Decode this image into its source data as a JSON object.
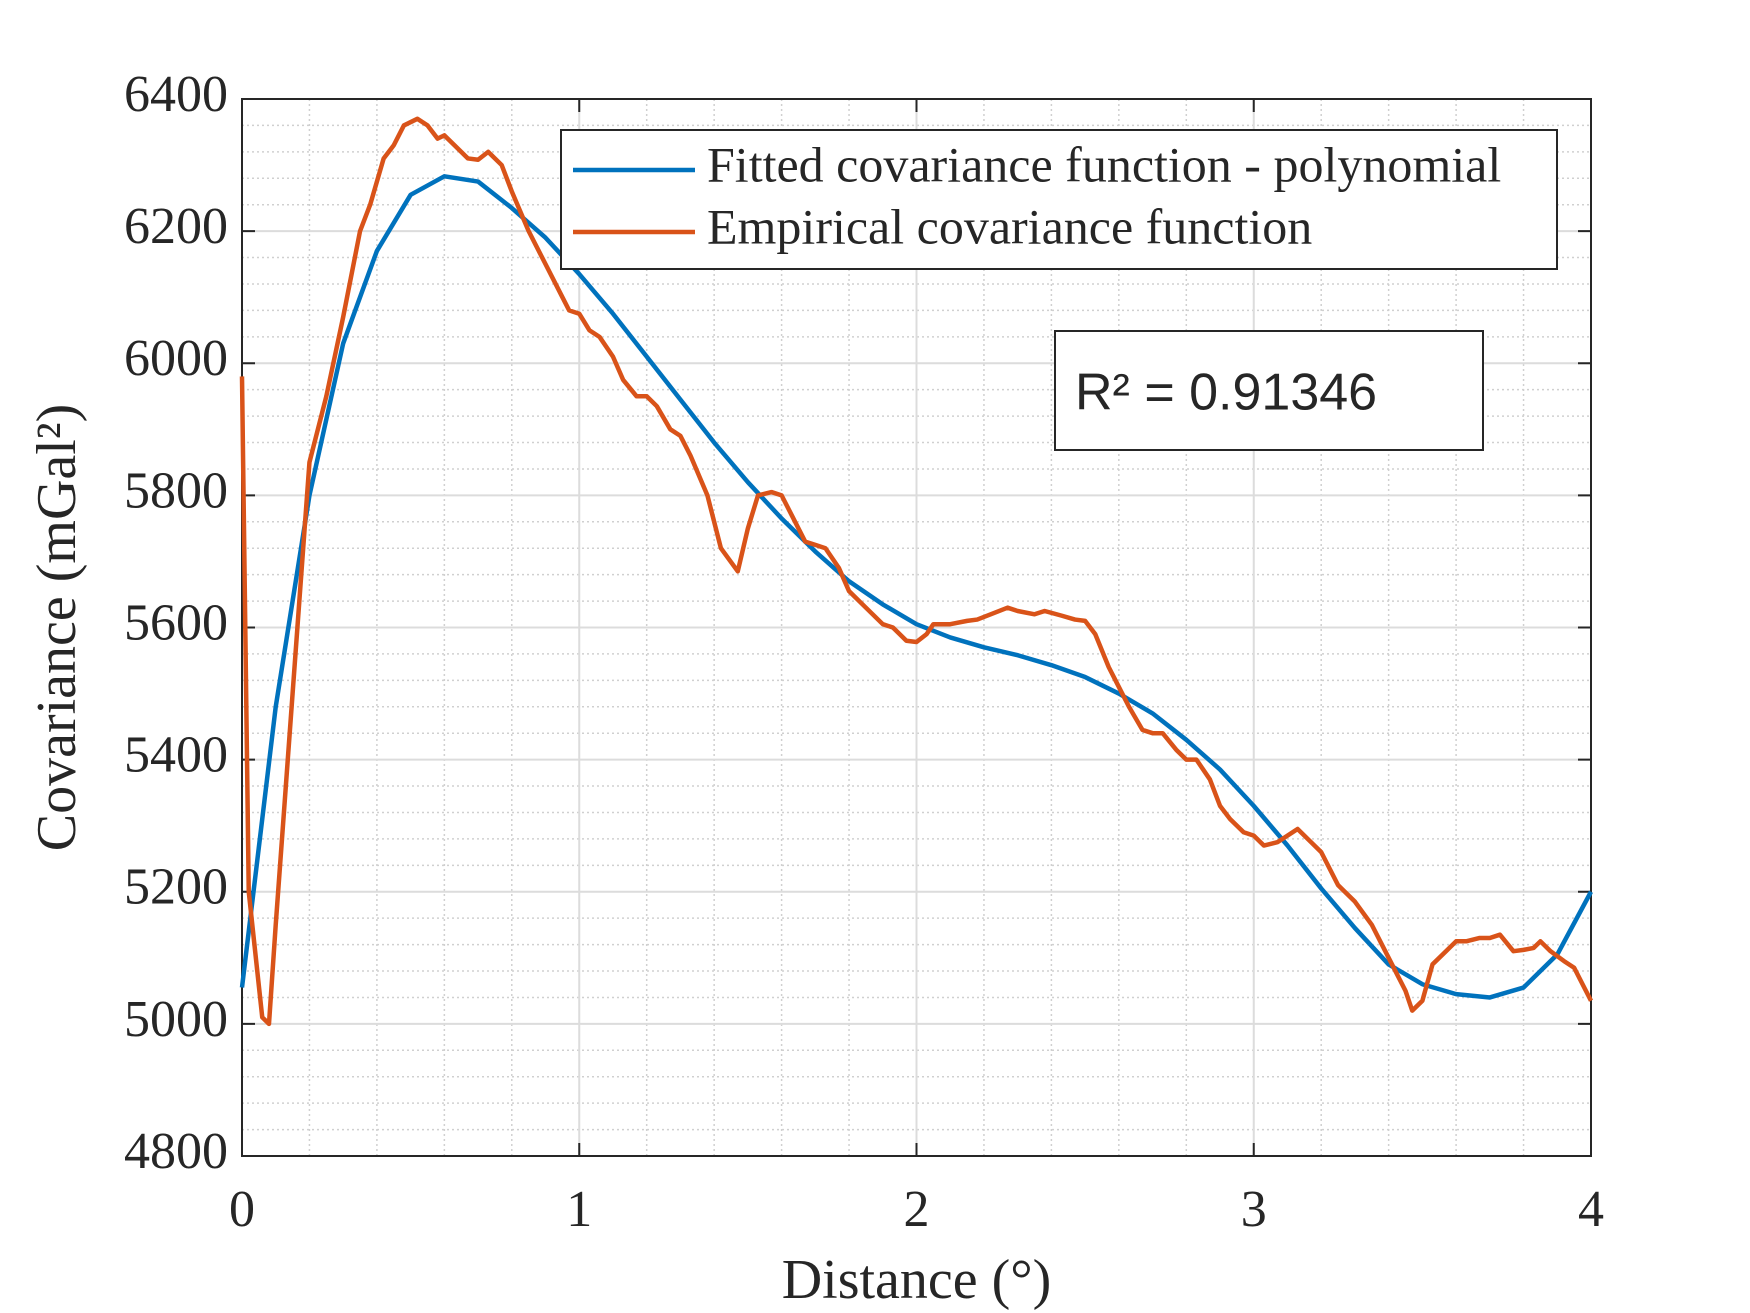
{
  "chart_data": {
    "type": "line",
    "xlabel": "Distance (°)",
    "ylabel": "Covariance (mGal²)",
    "xlim": [
      0,
      4
    ],
    "xticks": [
      0,
      1,
      2,
      3,
      4
    ],
    "ylim": [
      4800,
      6400
    ],
    "yticks": [
      4800,
      5000,
      5200,
      5400,
      5600,
      5800,
      6000,
      6200,
      6400
    ],
    "grid": true,
    "minor_grid": true,
    "legend": "upper right",
    "annotation": "R² = 0.91346",
    "series": [
      {
        "name": "Fitted covariance function - polynomial",
        "color": "#0072BD",
        "x": [
          0,
          0.1,
          0.2,
          0.3,
          0.4,
          0.5,
          0.6,
          0.7,
          0.8,
          0.9,
          1.0,
          1.1,
          1.2,
          1.3,
          1.4,
          1.5,
          1.6,
          1.7,
          1.8,
          1.9,
          2.0,
          2.1,
          2.2,
          2.3,
          2.4,
          2.5,
          2.6,
          2.7,
          2.8,
          2.9,
          3.0,
          3.1,
          3.2,
          3.3,
          3.4,
          3.5,
          3.6,
          3.7,
          3.8,
          3.9,
          4.0
        ],
        "values": [
          5055,
          5480,
          5800,
          6030,
          6170,
          6255,
          6283,
          6275,
          6235,
          6190,
          6135,
          6075,
          6010,
          5945,
          5880,
          5820,
          5765,
          5715,
          5670,
          5635,
          5605,
          5585,
          5570,
          5558,
          5543,
          5525,
          5500,
          5470,
          5430,
          5385,
          5330,
          5270,
          5205,
          5145,
          5090,
          5060,
          5045,
          5040,
          5055,
          5105,
          5200
        ]
      },
      {
        "name": "Empirical covariance function",
        "color": "#D95319",
        "x": [
          0,
          0.02,
          0.06,
          0.08,
          0.1,
          0.15,
          0.2,
          0.25,
          0.3,
          0.35,
          0.38,
          0.42,
          0.45,
          0.48,
          0.52,
          0.55,
          0.58,
          0.6,
          0.63,
          0.67,
          0.7,
          0.73,
          0.77,
          0.8,
          0.85,
          0.9,
          0.95,
          0.97,
          1.0,
          1.03,
          1.06,
          1.1,
          1.13,
          1.17,
          1.2,
          1.23,
          1.27,
          1.3,
          1.33,
          1.38,
          1.42,
          1.47,
          1.5,
          1.53,
          1.57,
          1.6,
          1.63,
          1.67,
          1.7,
          1.73,
          1.77,
          1.8,
          1.85,
          1.9,
          1.93,
          1.97,
          2.0,
          2.03,
          2.05,
          2.1,
          2.15,
          2.18,
          2.22,
          2.27,
          2.3,
          2.35,
          2.38,
          2.43,
          2.47,
          2.5,
          2.53,
          2.57,
          2.6,
          2.63,
          2.67,
          2.7,
          2.73,
          2.77,
          2.8,
          2.83,
          2.87,
          2.9,
          2.93,
          2.97,
          3.0,
          3.03,
          3.07,
          3.1,
          3.13,
          3.17,
          3.2,
          3.25,
          3.3,
          3.35,
          3.4,
          3.45,
          3.47,
          3.5,
          3.53,
          3.57,
          3.6,
          3.63,
          3.67,
          3.7,
          3.73,
          3.77,
          3.8,
          3.83,
          3.85,
          3.88,
          3.92,
          3.95,
          4.0
        ],
        "values": [
          5980,
          5200,
          5010,
          5000,
          5150,
          5500,
          5850,
          5950,
          6070,
          6200,
          6240,
          6310,
          6330,
          6360,
          6370,
          6360,
          6340,
          6345,
          6330,
          6310,
          6308,
          6320,
          6300,
          6260,
          6200,
          6150,
          6100,
          6080,
          6075,
          6050,
          6040,
          6010,
          5975,
          5950,
          5950,
          5935,
          5900,
          5890,
          5860,
          5800,
          5720,
          5685,
          5750,
          5800,
          5805,
          5800,
          5770,
          5730,
          5725,
          5720,
          5690,
          5655,
          5630,
          5605,
          5600,
          5580,
          5578,
          5590,
          5605,
          5605,
          5610,
          5612,
          5620,
          5630,
          5625,
          5620,
          5625,
          5618,
          5612,
          5610,
          5590,
          5540,
          5510,
          5480,
          5445,
          5440,
          5440,
          5415,
          5400,
          5400,
          5370,
          5330,
          5310,
          5290,
          5285,
          5270,
          5275,
          5285,
          5295,
          5275,
          5260,
          5210,
          5185,
          5150,
          5100,
          5050,
          5020,
          5035,
          5090,
          5110,
          5125,
          5125,
          5130,
          5130,
          5135,
          5110,
          5112,
          5115,
          5125,
          5110,
          5095,
          5085,
          5035
        ]
      }
    ]
  }
}
